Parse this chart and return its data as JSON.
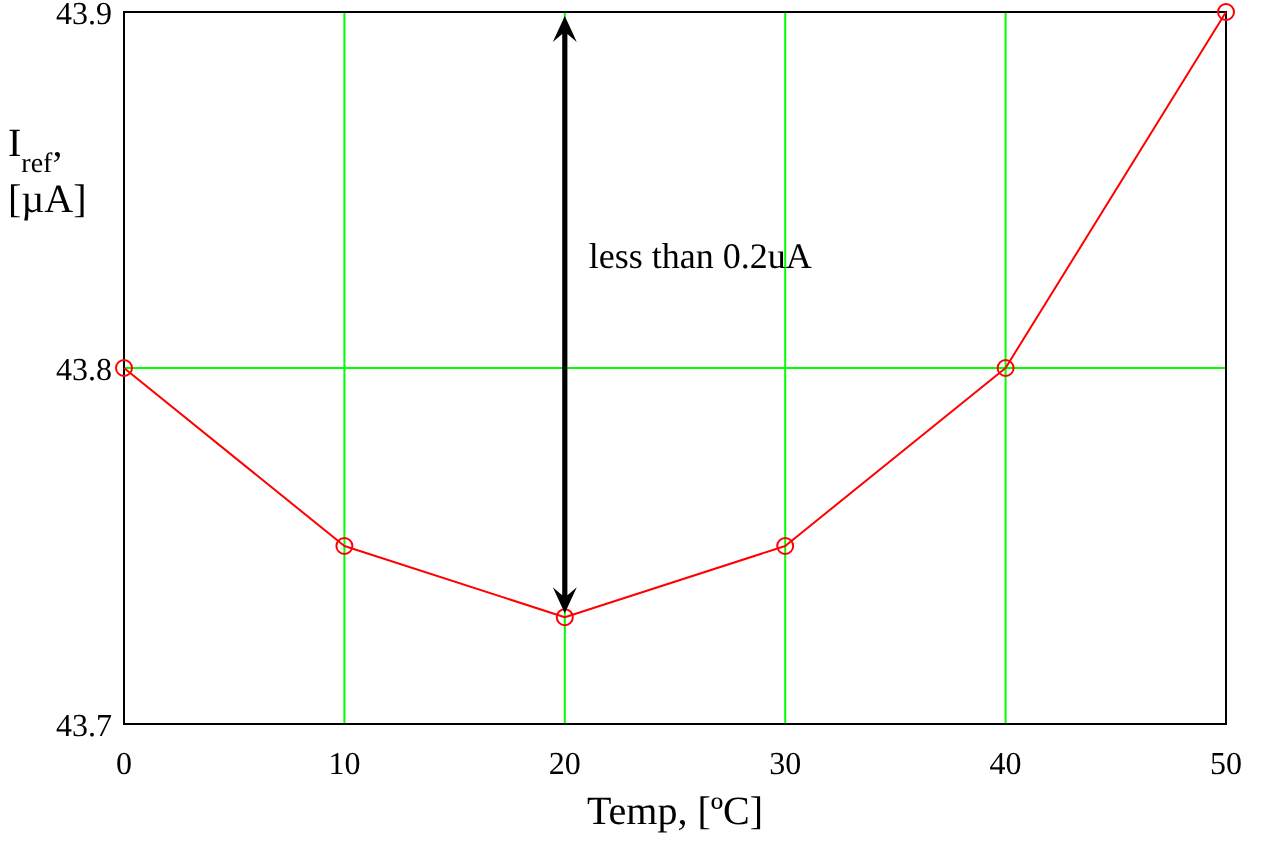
{
  "chart_data": {
    "type": "line",
    "xlabel": "Temp, [ºC]",
    "ylabel": "I$_{ref}$, [µA]",
    "x": [
      0,
      10,
      20,
      30,
      40,
      50
    ],
    "series": [
      {
        "color": "#ff0000",
        "values": [
          43.8,
          43.75,
          43.73,
          43.75,
          43.8,
          43.9
        ]
      }
    ],
    "xlim": [
      0,
      50
    ],
    "xticks": [
      0,
      10,
      20,
      30,
      40,
      50
    ],
    "ylim": [
      43.7,
      43.9
    ],
    "yticks": [
      43.7,
      43.8,
      43.9
    ],
    "grid": true,
    "marker": "circle",
    "line_style": "solid",
    "annotations": [
      "less than 0.2uA"
    ]
  }
}
